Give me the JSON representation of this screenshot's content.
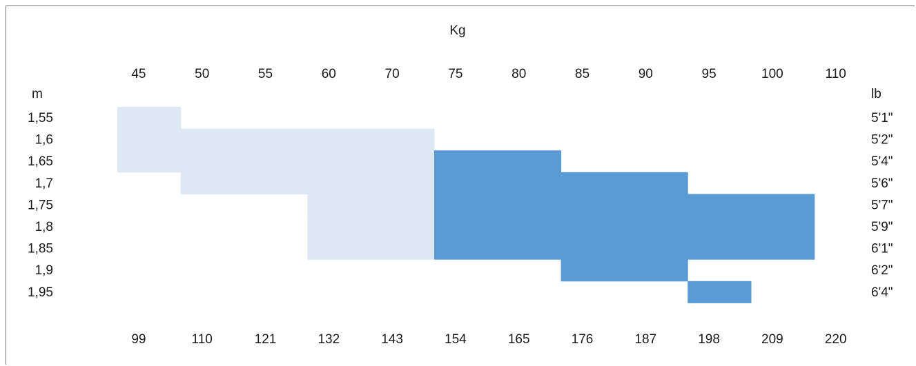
{
  "chart_data": {
    "type": "heatmap",
    "title": "Kg",
    "top_axis_unit": "Kg",
    "top_axis_ticks": [
      "45",
      "50",
      "55",
      "60",
      "70",
      "75",
      "80",
      "85",
      "90",
      "95",
      "100",
      "110"
    ],
    "bottom_axis_ticks": [
      "99",
      "110",
      "121",
      "132",
      "143",
      "154",
      "165",
      "176",
      "187",
      "198",
      "209",
      "220"
    ],
    "left_axis_unit": "m",
    "left_axis_ticks": [
      "1,55",
      "1,6",
      "1,65",
      "1,7",
      "1,75",
      "1,8",
      "1,85",
      "1,9",
      "1,95"
    ],
    "right_axis_unit": "lb",
    "right_axis_ticks": [
      "5'1\"",
      "5'2\"",
      "5'4\"",
      "5'6\"",
      "5'7\"",
      "5'9\"",
      "6'1\"",
      "6'2\"",
      "6'4\""
    ],
    "colors": {
      "light": "#dde8f4",
      "dark": "#5b9bd5"
    },
    "cells": [
      {
        "row": "1,55",
        "col_start": "45",
        "col_end": "45",
        "level": "light"
      },
      {
        "row": "1,6",
        "col_start": "45",
        "col_end": "70",
        "level": "light"
      },
      {
        "row": "1,65",
        "col_start": "45",
        "col_end": "70",
        "level": "light"
      },
      {
        "row": "1,65",
        "col_start": "75",
        "col_end": "80",
        "level": "dark"
      },
      {
        "row": "1,7",
        "col_start": "50",
        "col_end": "70",
        "level": "light"
      },
      {
        "row": "1,7",
        "col_start": "75",
        "col_end": "90",
        "level": "dark"
      },
      {
        "row": "1,75",
        "col_start": "60",
        "col_end": "70",
        "level": "light"
      },
      {
        "row": "1,75",
        "col_start": "75",
        "col_end": "100",
        "level": "dark"
      },
      {
        "row": "1,8",
        "col_start": "60",
        "col_end": "70",
        "level": "light"
      },
      {
        "row": "1,8",
        "col_start": "75",
        "col_end": "100",
        "level": "dark"
      },
      {
        "row": "1,85",
        "col_start": "60",
        "col_end": "70",
        "level": "light"
      },
      {
        "row": "1,85",
        "col_start": "75",
        "col_end": "100",
        "level": "dark"
      },
      {
        "row": "1,9",
        "col_start": "85",
        "col_end": "90",
        "level": "dark"
      },
      {
        "row": "1,95",
        "col_start": "95",
        "col_end": "95",
        "level": "dark"
      }
    ]
  }
}
